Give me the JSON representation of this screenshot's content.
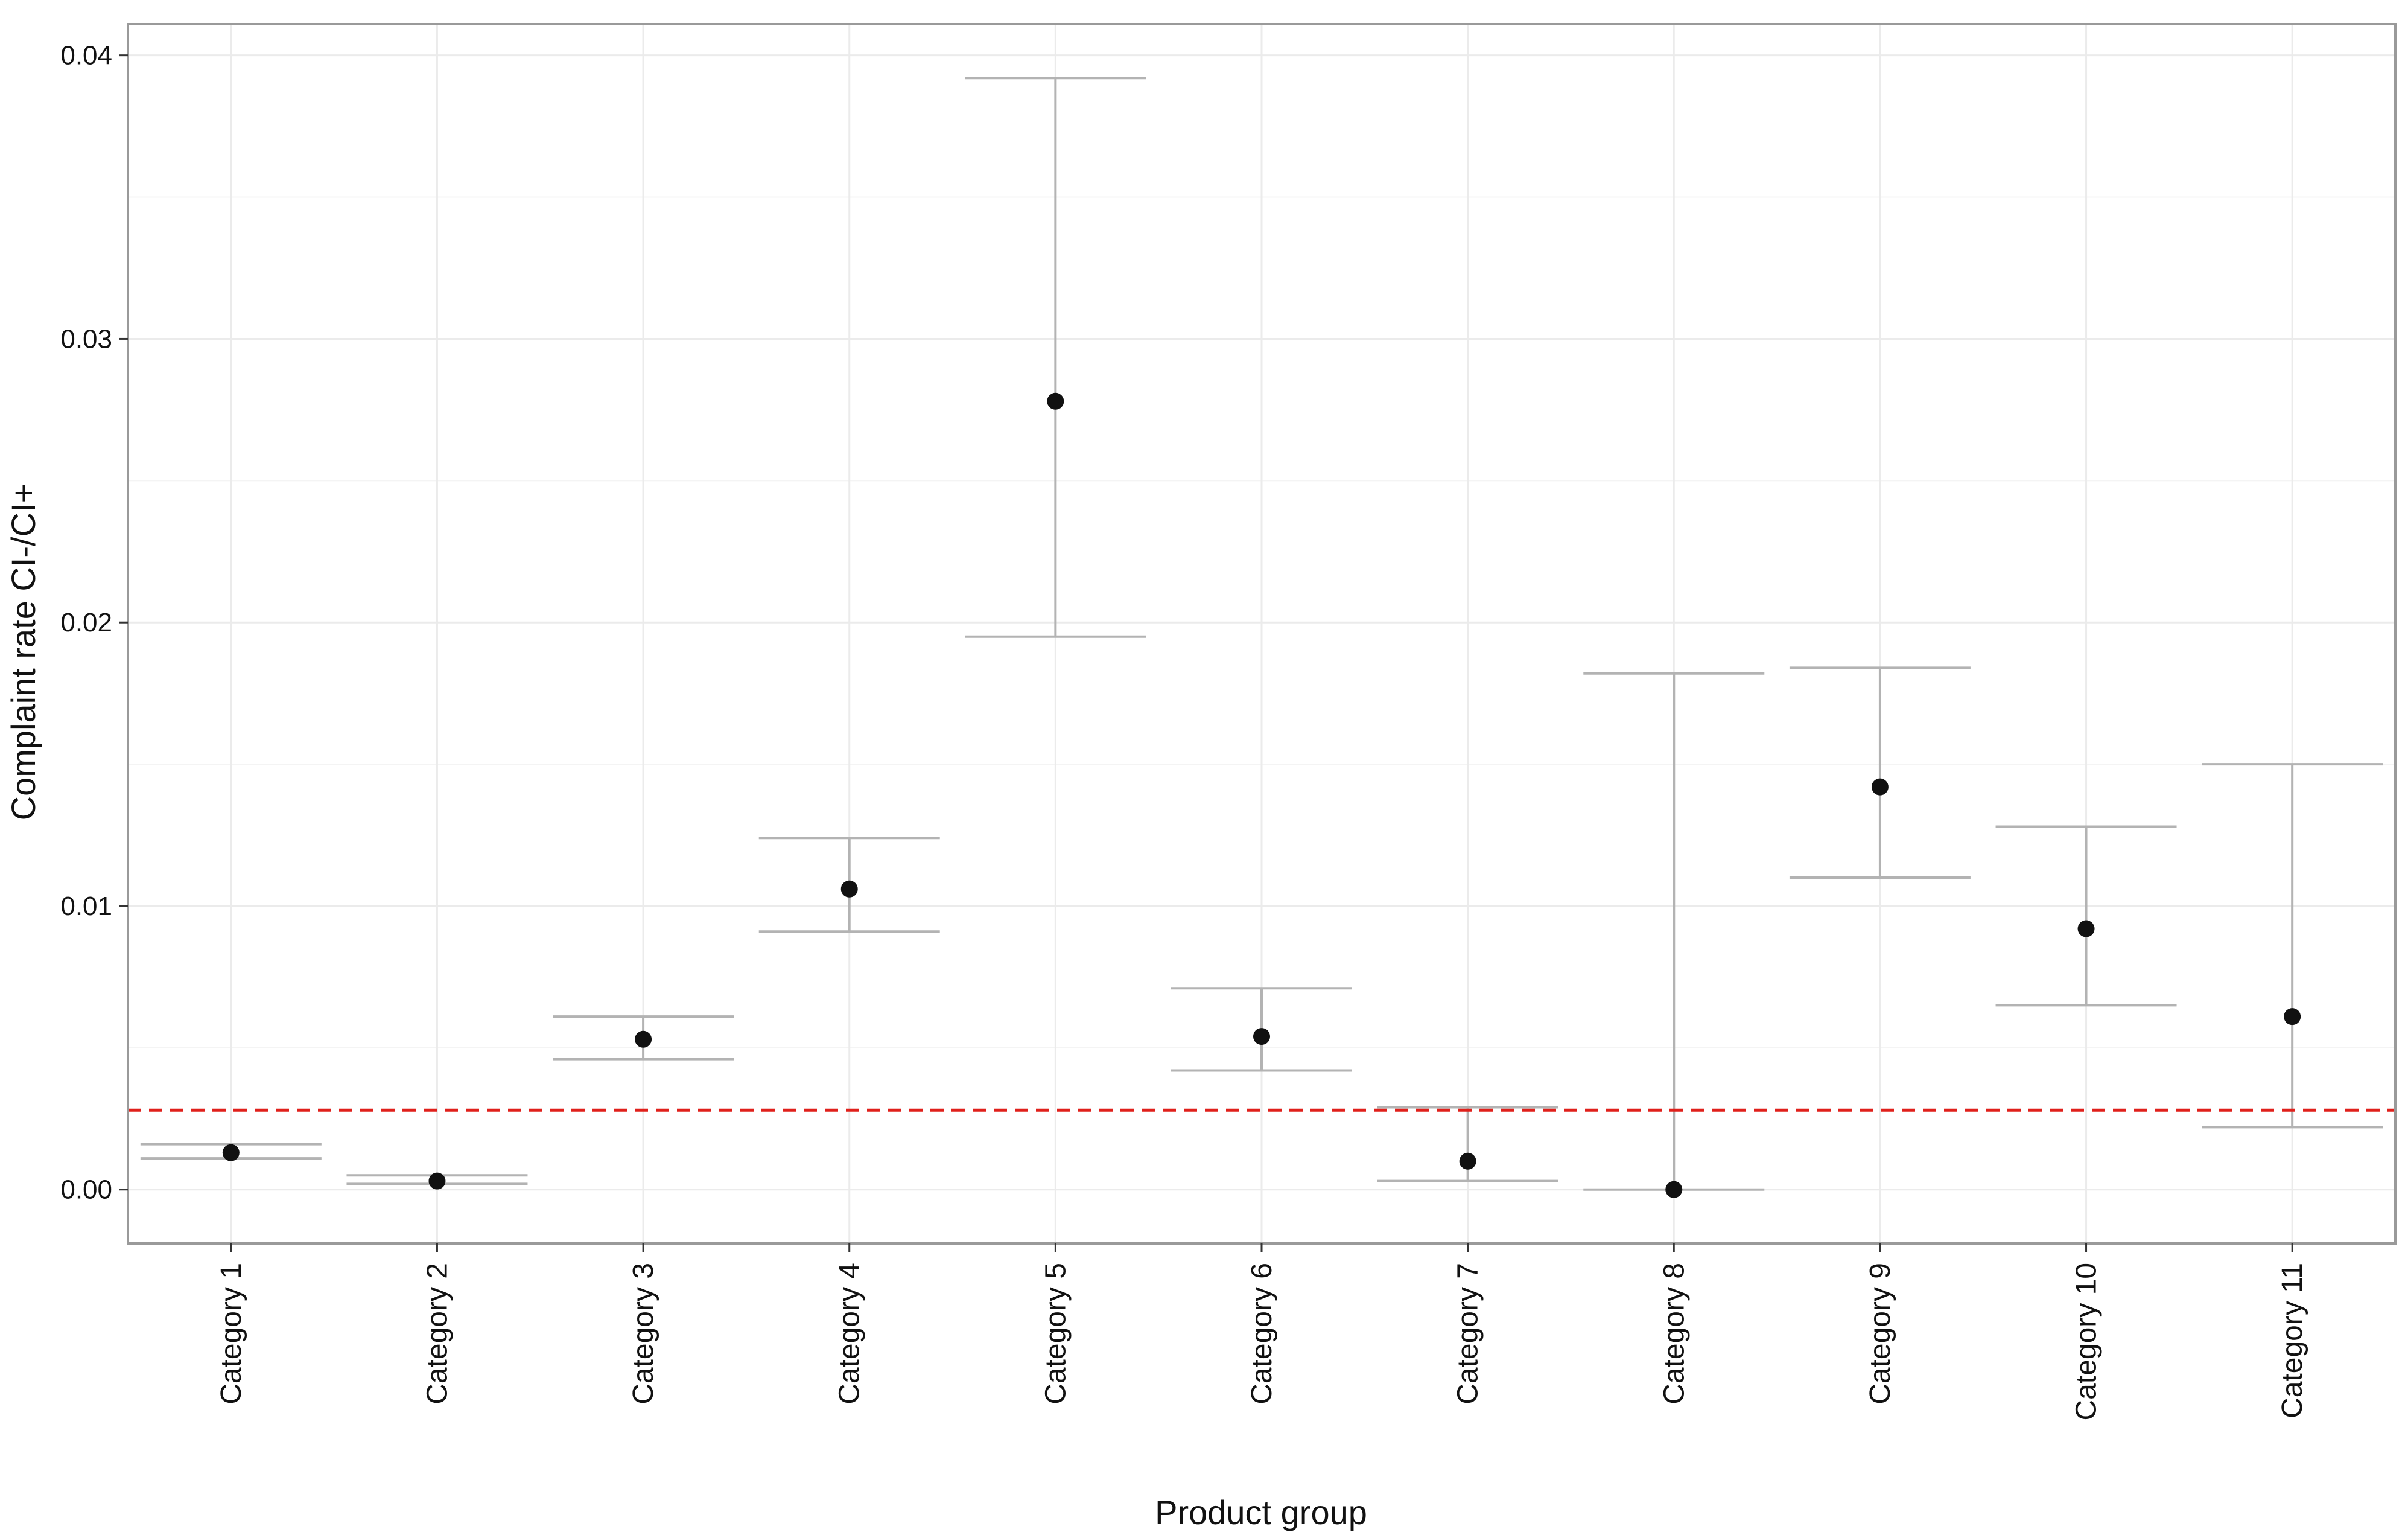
{
  "chart_data": {
    "type": "errorbar-point",
    "title": "",
    "xlabel": "Product group",
    "ylabel": "Complaint rate CI-/CI+",
    "categories": [
      "Category 1",
      "Category 2",
      "Category 3",
      "Category 4",
      "Category 5",
      "Category 6",
      "Category 7",
      "Category 8",
      "Category 9",
      "Category 10",
      "Category 11"
    ],
    "series": [
      {
        "name": "Complaint rate",
        "values": [
          0.0013,
          0.0003,
          0.0053,
          0.0106,
          0.0278,
          0.0054,
          0.001,
          0.0,
          0.0142,
          0.0092,
          0.0061
        ],
        "ci_lower": [
          0.0011,
          0.0002,
          0.0046,
          0.0091,
          0.0195,
          0.0042,
          0.0003,
          0.0,
          0.011,
          0.0065,
          0.0022
        ],
        "ci_upper": [
          0.0016,
          0.0005,
          0.0061,
          0.0124,
          0.0392,
          0.0071,
          0.0029,
          0.0182,
          0.0184,
          0.0128,
          0.015
        ]
      }
    ],
    "reference_line": {
      "value": 0.0028,
      "style": "dashed",
      "color": "#e0201b"
    },
    "ylim": [
      -0.0019,
      0.0411
    ],
    "yticks": [
      0.0,
      0.01,
      0.02,
      0.03,
      0.04
    ],
    "ytick_labels": [
      "0.00",
      "0.01",
      "0.02",
      "0.03",
      "0.04"
    ],
    "grid": true,
    "colors": {
      "point": "#111111",
      "errorbar": "#b3b3b3",
      "grid": "#ebebeb",
      "panel_border": "#9a9a9a",
      "background": "#ffffff"
    }
  }
}
